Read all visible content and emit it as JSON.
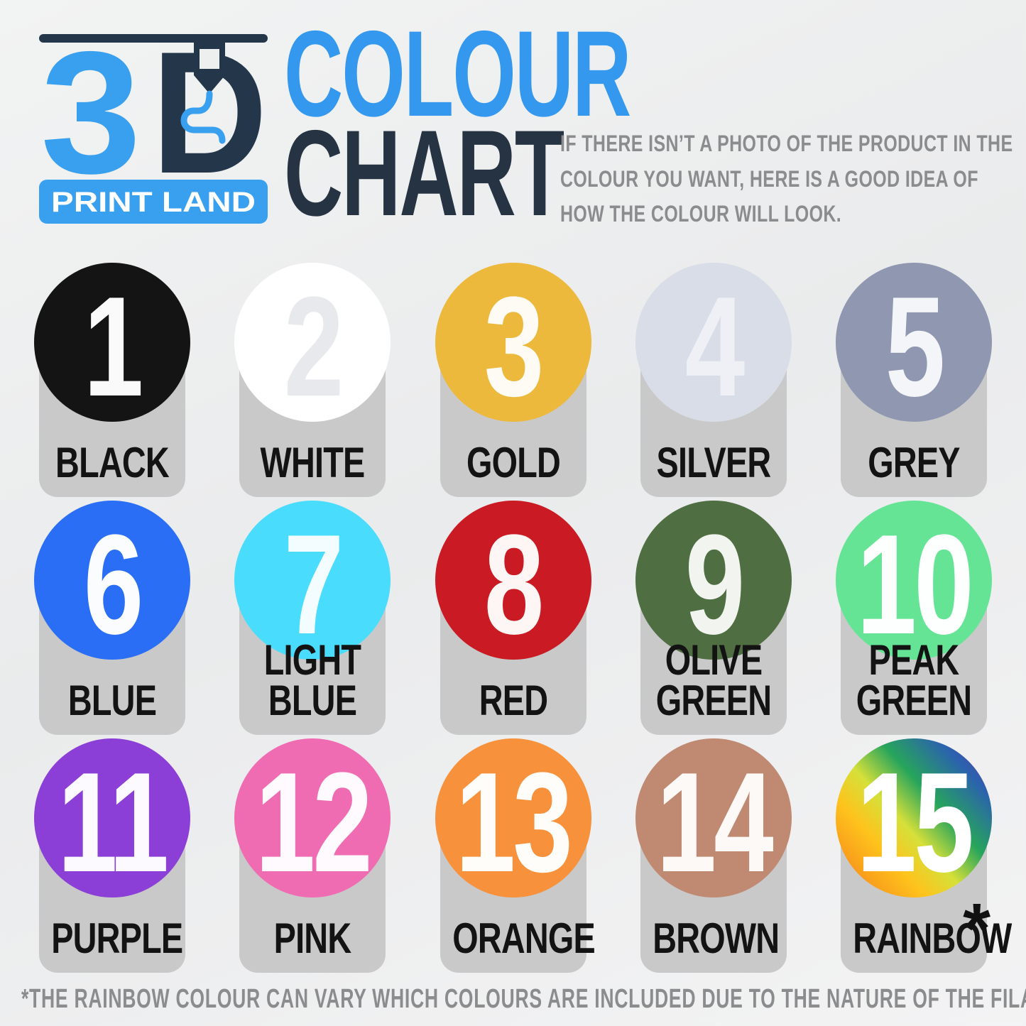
{
  "logo": {
    "number": "3",
    "letter": "D",
    "banner": "PRINT LAND",
    "blue": "#38a0ee",
    "navy": "#24364a"
  },
  "title": {
    "line1": "COLOUR",
    "line2": "CHART",
    "line1_color": "#3498ef",
    "line2_color": "#253343"
  },
  "subtitle": {
    "color": "#8a8c8e",
    "lines": [
      "IF THERE ISN’T A PHOTO OF THE PRODUCT IN THE",
      "COLOUR YOU WANT, HERE IS A GOOD IDEA OF",
      "HOW THE COLOUR WILL LOOK."
    ]
  },
  "colors": {
    "tab": "#c9c9ca"
  },
  "swatches": [
    {
      "number": "1",
      "name": "BLACK",
      "color": "#141414",
      "number_color": "#fafafa"
    },
    {
      "number": "2",
      "name": "WHITE",
      "color": "#ffffff",
      "number_color": "#e8e9ec"
    },
    {
      "number": "3",
      "name": "GOLD",
      "color": "#edb93c",
      "number_color": "#fdfbf4"
    },
    {
      "number": "4",
      "name": "SILVER",
      "color": "#d9dde7",
      "number_color": "#eef0f6"
    },
    {
      "number": "5",
      "name": "GREY",
      "color": "#8f97b1",
      "number_color": "#f4f5f8"
    },
    {
      "number": "6",
      "name": "BLUE",
      "color": "#2a6ef6",
      "number_color": "#fbfcfe"
    },
    {
      "number": "7",
      "name": "LIGHT\nBLUE",
      "color": "#49dcfc",
      "number_color": "#f3fdff"
    },
    {
      "number": "8",
      "name": "RED",
      "color": "#ca1a23",
      "number_color": "#fdf6f4"
    },
    {
      "number": "9",
      "name": "OLIVE\nGREEN",
      "color": "#4f6e41",
      "number_color": "#f2f5ef"
    },
    {
      "number": "10",
      "name": "PEAK\nGREEN",
      "color": "#66e496",
      "number_color": "#fcfffd"
    },
    {
      "number": "11",
      "name": "PURPLE",
      "color": "#8b3fd6",
      "number_color": "#fcfaff"
    },
    {
      "number": "12",
      "name": "PINK",
      "color": "#f06cb2",
      "number_color": "#fffafd"
    },
    {
      "number": "13",
      "name": "ORANGE",
      "color": "#f7913b",
      "number_color": "#fffdf9"
    },
    {
      "number": "14",
      "name": "BROWN",
      "color": "#c08a72",
      "number_color": "#fdf9f6"
    },
    {
      "number": "15",
      "name": "RAINBOW",
      "color": "linear-gradient(48deg, #f5811c 4%, #fec31c 30%, #d6e03a 45%, #27a55b 62%, #2b62ae 82%, #5b3da6 96%)",
      "number_color": "#ffffff",
      "marker": "*"
    }
  ],
  "footnote": {
    "color": "#8a8c8e",
    "text": "*THE RAINBOW COLOUR CAN VARY WHICH COLOURS ARE INCLUDED DUE TO THE NATURE OF THE FILAMENT SPOOLS."
  }
}
